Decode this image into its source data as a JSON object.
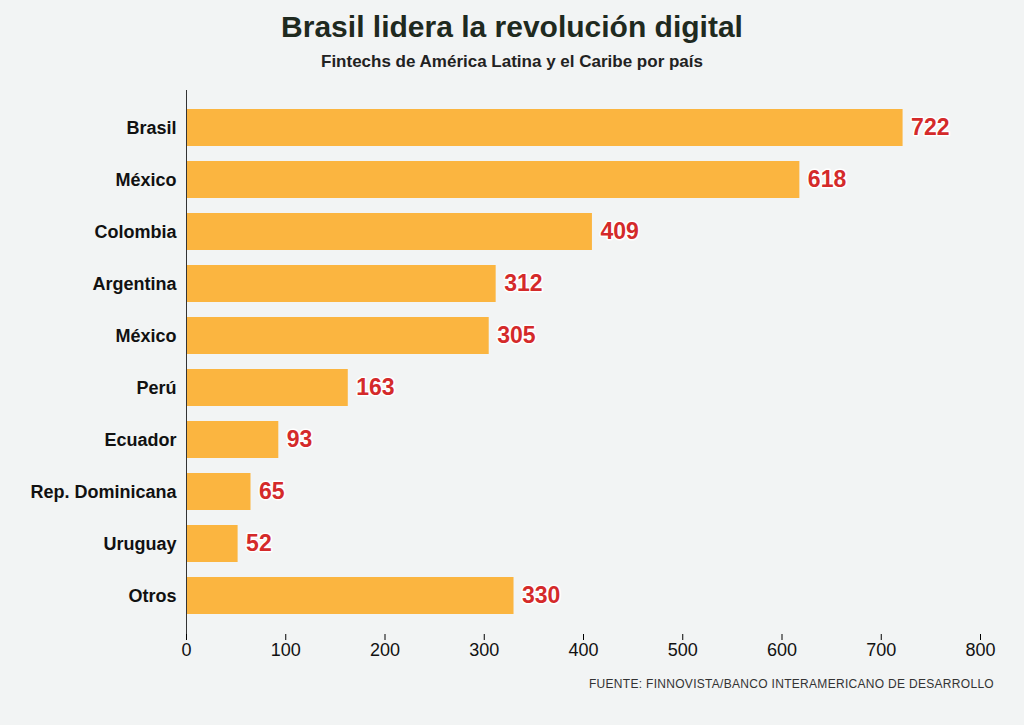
{
  "chart_data": {
    "type": "bar",
    "title": "Brasil lidera la revolución digital",
    "subtitle": "Fintechs de América Latina y el Caribe por país",
    "source": "FUENTE: FINNOVISTA/BANCO INTERAMERICANO DE DESARROLLO",
    "orientation": "horizontal",
    "categories": [
      "Brasil",
      "México",
      "Colombia",
      "Argentina",
      "México",
      "Perú",
      "Ecuador",
      "Rep. Dominicana",
      "Uruguay",
      "Otros"
    ],
    "values": [
      722,
      618,
      409,
      312,
      305,
      163,
      93,
      65,
      52,
      330
    ],
    "color": "#fbb540",
    "xlim": [
      0,
      800
    ],
    "xticks": [
      0,
      100,
      200,
      300,
      400,
      500,
      600,
      700,
      800
    ],
    "data_labels": true
  }
}
